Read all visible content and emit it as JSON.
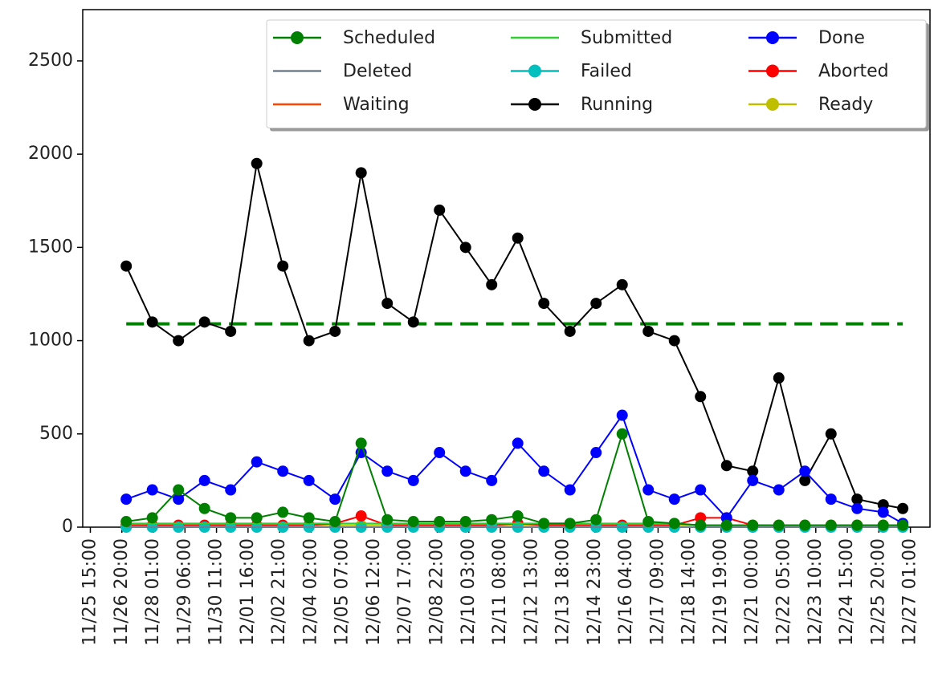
{
  "chart_data": {
    "type": "line",
    "x": [
      "11/27 00:00",
      "11/28 00:00",
      "11/29 00:00",
      "11/30 00:00",
      "12/01 00:00",
      "12/02 00:00",
      "12/03 00:00",
      "12/04 00:00",
      "12/05 00:00",
      "12/06 00:00",
      "12/07 00:00",
      "12/08 00:00",
      "12/09 00:00",
      "12/10 00:00",
      "12/11 00:00",
      "12/12 00:00",
      "12/13 00:00",
      "12/14 00:00",
      "12/15 00:00",
      "12/16 00:00",
      "12/17 00:00",
      "12/18 00:00",
      "12/19 00:00",
      "12/20 00:00",
      "12/21 00:00",
      "12/22 00:00",
      "12/23 00:00",
      "12/24 00:00",
      "12/25 00:00",
      "12/26 00:00",
      "12/26 18:00"
    ],
    "xlim": [
      "11/25 08:00",
      "12/27 19:00"
    ],
    "xticks": [
      "11/25 15:00",
      "11/26 20:00",
      "11/28 01:00",
      "11/29 06:00",
      "11/30 11:00",
      "12/01 16:00",
      "12/02 21:00",
      "12/04 02:00",
      "12/05 07:00",
      "12/06 12:00",
      "12/07 17:00",
      "12/08 22:00",
      "12/10 03:00",
      "12/11 08:00",
      "12/12 13:00",
      "12/13 18:00",
      "12/14 23:00",
      "12/16 04:00",
      "12/17 09:00",
      "12/18 14:00",
      "12/19 19:00",
      "12/21 00:00",
      "12/22 05:00",
      "12/23 10:00",
      "12/24 15:00",
      "12/25 20:00",
      "12/27 01:00"
    ],
    "ylim": [
      0,
      2775
    ],
    "yticks": [
      0,
      500,
      1000,
      1500,
      2000,
      2500
    ],
    "legend": "upper right",
    "reference_line": {
      "value": 1090,
      "color": "#008000",
      "style": "dashed"
    },
    "series": [
      {
        "name": "Scheduled",
        "color": "#008000",
        "marker": true,
        "values": [
          30,
          50,
          200,
          100,
          50,
          50,
          80,
          50,
          30,
          450,
          40,
          30,
          30,
          30,
          40,
          60,
          20,
          20,
          40,
          500,
          30,
          20,
          10,
          10,
          10,
          10,
          10,
          10,
          10,
          10,
          10
        ]
      },
      {
        "name": "Submitted",
        "color": "#32cd32",
        "marker": false,
        "values": [
          20,
          20,
          20,
          20,
          20,
          20,
          20,
          20,
          20,
          20,
          20,
          20,
          20,
          20,
          20,
          20,
          20,
          20,
          20,
          20,
          20,
          20,
          10,
          10,
          10,
          10,
          10,
          10,
          10,
          10,
          10
        ]
      },
      {
        "name": "Done",
        "color": "#0000ff",
        "marker": true,
        "values": [
          150,
          200,
          150,
          250,
          200,
          350,
          300,
          250,
          150,
          400,
          300,
          250,
          400,
          300,
          250,
          450,
          300,
          200,
          400,
          600,
          200,
          150,
          200,
          50,
          250,
          200,
          300,
          150,
          100,
          80,
          20
        ]
      },
      {
        "name": "Deleted",
        "color": "#708090",
        "marker": false,
        "values": [
          0,
          0,
          0,
          0,
          0,
          0,
          0,
          0,
          0,
          0,
          0,
          0,
          0,
          0,
          0,
          0,
          0,
          0,
          0,
          0,
          0,
          0,
          0,
          0,
          0,
          0,
          0,
          0,
          0,
          0,
          0
        ]
      },
      {
        "name": "Failed",
        "color": "#00bfbf",
        "marker": true,
        "values": [
          0,
          0,
          0,
          0,
          0,
          0,
          0,
          0,
          0,
          0,
          0,
          0,
          0,
          0,
          0,
          0,
          0,
          0,
          0,
          0,
          0,
          0,
          0,
          0,
          0,
          0,
          0,
          0,
          0,
          0,
          0
        ]
      },
      {
        "name": "Aborted",
        "color": "#ff0000",
        "marker": true,
        "values": [
          10,
          10,
          10,
          10,
          10,
          10,
          10,
          10,
          20,
          60,
          10,
          10,
          10,
          10,
          10,
          20,
          10,
          10,
          10,
          10,
          10,
          10,
          50,
          50,
          10,
          10,
          10,
          10,
          10,
          10,
          10
        ]
      },
      {
        "name": "Waiting",
        "color": "#ff4500",
        "marker": false,
        "values": [
          0,
          0,
          0,
          0,
          0,
          0,
          0,
          0,
          0,
          0,
          0,
          0,
          0,
          0,
          0,
          0,
          0,
          0,
          0,
          0,
          0,
          0,
          0,
          0,
          0,
          0,
          0,
          0,
          0,
          0,
          0
        ]
      },
      {
        "name": "Running",
        "color": "#000000",
        "marker": true,
        "values": [
          1400,
          1100,
          1000,
          1100,
          1050,
          1950,
          1400,
          1000,
          1050,
          1900,
          1200,
          1100,
          1700,
          1500,
          1300,
          1550,
          1200,
          1050,
          1200,
          1300,
          1050,
          1000,
          700,
          330,
          300,
          800,
          250,
          500,
          150,
          120,
          100
        ]
      },
      {
        "name": "Ready",
        "color": "#bfbf00",
        "marker": true,
        "values": [
          10,
          10,
          10,
          10,
          10,
          10,
          10,
          10,
          10,
          10,
          10,
          10,
          10,
          10,
          10,
          10,
          10,
          10,
          10,
          10,
          10,
          10,
          10,
          10,
          10,
          10,
          10,
          10,
          10,
          10,
          10
        ]
      }
    ]
  }
}
